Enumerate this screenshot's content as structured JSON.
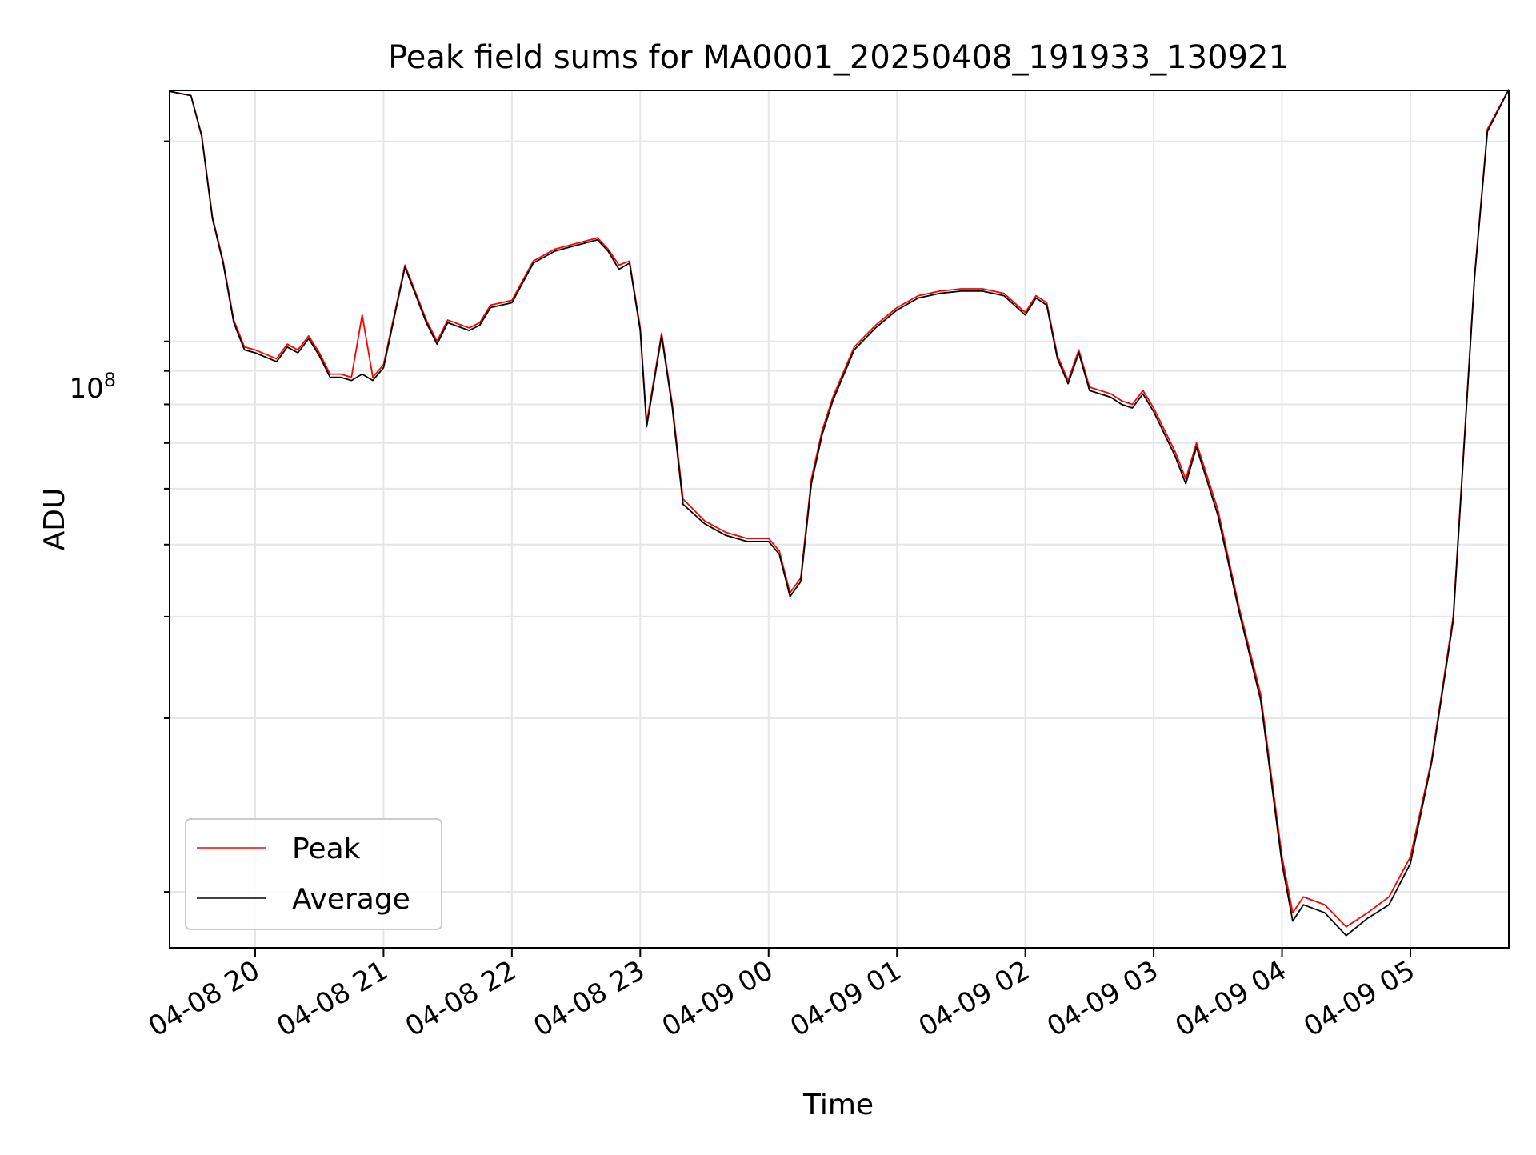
{
  "chart_data": {
    "type": "line",
    "title": "Peak field sums for MA0001_20250408_191933_130921",
    "xlabel": "Time",
    "ylabel": "ADU",
    "y_scale": "log",
    "ylim": [
      8000000,
      245000000
    ],
    "xlim": [
      "2025-04-08 19:20",
      "2025-04-09 05:46"
    ],
    "x_ticks": [
      "04-08 20",
      "04-08 21",
      "04-08 22",
      "04-08 23",
      "04-09 00",
      "04-09 01",
      "04-09 02",
      "04-09 03",
      "04-09 04",
      "04-09 05"
    ],
    "y_tick_label": "10^8",
    "y_tick_label_base": "10",
    "y_tick_label_exp": "8",
    "grid": true,
    "legend_position": "lower-left",
    "colors": {
      "peak": "#ff0000",
      "average": "#000000",
      "grid": "#e6e6e6"
    },
    "series": [
      {
        "name": "Peak",
        "color": "#ff0000",
        "x": [
          "04-08 19:20",
          "04-08 19:30",
          "04-08 19:35",
          "04-08 19:40",
          "04-08 19:45",
          "04-08 19:50",
          "04-08 19:55",
          "04-08 20:00",
          "04-08 20:10",
          "04-08 20:15",
          "04-08 20:20",
          "04-08 20:25",
          "04-08 20:30",
          "04-08 20:35",
          "04-08 20:40",
          "04-08 20:45",
          "04-08 20:50",
          "04-08 20:55",
          "04-08 21:00",
          "04-08 21:05",
          "04-08 21:10",
          "04-08 21:20",
          "04-08 21:25",
          "04-08 21:30",
          "04-08 21:40",
          "04-08 21:45",
          "04-08 21:50",
          "04-08 22:00",
          "04-08 22:10",
          "04-08 22:20",
          "04-08 22:30",
          "04-08 22:40",
          "04-08 22:45",
          "04-08 22:50",
          "04-08 22:55",
          "04-08 23:00",
          "04-08 23:03",
          "04-08 23:10",
          "04-08 23:15",
          "04-08 23:20",
          "04-08 23:30",
          "04-08 23:40",
          "04-08 23:50",
          "04-09 00:00",
          "04-09 00:05",
          "04-09 00:10",
          "04-09 00:15",
          "04-09 00:20",
          "04-09 00:25",
          "04-09 00:30",
          "04-09 00:40",
          "04-09 00:50",
          "04-09 01:00",
          "04-09 01:10",
          "04-09 01:20",
          "04-09 01:30",
          "04-09 01:40",
          "04-09 01:50",
          "04-09 02:00",
          "04-09 02:05",
          "04-09 02:10",
          "04-09 02:15",
          "04-09 02:20",
          "04-09 02:25",
          "04-09 02:30",
          "04-09 02:40",
          "04-09 02:45",
          "04-09 02:50",
          "04-09 02:55",
          "04-09 03:00",
          "04-09 03:10",
          "04-09 03:15",
          "04-09 03:20",
          "04-09 03:30",
          "04-09 03:40",
          "04-09 03:50",
          "04-09 04:00",
          "04-09 04:05",
          "04-09 04:10",
          "04-09 04:20",
          "04-09 04:30",
          "04-09 04:40",
          "04-09 04:50",
          "04-09 05:00",
          "04-09 05:10",
          "04-09 05:20",
          "04-09 05:30",
          "04-09 05:36",
          "04-09 05:46"
        ],
        "y": [
          244000000,
          240000000,
          205000000,
          148000000,
          124000000,
          98000000,
          88000000,
          87000000,
          84000000,
          89000000,
          87000000,
          92000000,
          86000000,
          79000000,
          79000000,
          78000000,
          100000000,
          78000000,
          82000000,
          100000000,
          122000000,
          98000000,
          90000000,
          98000000,
          95000000,
          97000000,
          104000000,
          106000000,
          124000000,
          130000000,
          133000000,
          136000000,
          130000000,
          122000000,
          124000000,
          95000000,
          65000000,
          93000000,
          70000000,
          48000000,
          44000000,
          42000000,
          41000000,
          41000000,
          39000000,
          33000000,
          35000000,
          52000000,
          63000000,
          72000000,
          88000000,
          96000000,
          103000000,
          108000000,
          110000000,
          111000000,
          111000000,
          109000000,
          101000000,
          108000000,
          105000000,
          85000000,
          77000000,
          87000000,
          75000000,
          73000000,
          71000000,
          70000000,
          74000000,
          69000000,
          58000000,
          52000000,
          60000000,
          46000000,
          31000000,
          22000000,
          11500000,
          9200000,
          9800000,
          9500000,
          8700000,
          9200000,
          9800000,
          11500000,
          17000000,
          30000000,
          117000000,
          210000000,
          246000000
        ]
      },
      {
        "name": "Average",
        "color": "#000000",
        "x": [
          "04-08 19:20",
          "04-08 19:30",
          "04-08 19:35",
          "04-08 19:40",
          "04-08 19:45",
          "04-08 19:50",
          "04-08 19:55",
          "04-08 20:00",
          "04-08 20:10",
          "04-08 20:15",
          "04-08 20:20",
          "04-08 20:25",
          "04-08 20:30",
          "04-08 20:35",
          "04-08 20:40",
          "04-08 20:45",
          "04-08 20:50",
          "04-08 20:55",
          "04-08 21:00",
          "04-08 21:05",
          "04-08 21:10",
          "04-08 21:20",
          "04-08 21:25",
          "04-08 21:30",
          "04-08 21:40",
          "04-08 21:45",
          "04-08 21:50",
          "04-08 22:00",
          "04-08 22:10",
          "04-08 22:20",
          "04-08 22:30",
          "04-08 22:40",
          "04-08 22:45",
          "04-08 22:50",
          "04-08 22:55",
          "04-08 23:00",
          "04-08 23:03",
          "04-08 23:10",
          "04-08 23:15",
          "04-08 23:20",
          "04-08 23:30",
          "04-08 23:40",
          "04-08 23:50",
          "04-09 00:00",
          "04-09 00:05",
          "04-09 00:10",
          "04-09 00:15",
          "04-09 00:20",
          "04-09 00:25",
          "04-09 00:30",
          "04-09 00:40",
          "04-09 00:50",
          "04-09 01:00",
          "04-09 01:10",
          "04-09 01:20",
          "04-09 01:30",
          "04-09 01:40",
          "04-09 01:50",
          "04-09 02:00",
          "04-09 02:05",
          "04-09 02:10",
          "04-09 02:15",
          "04-09 02:20",
          "04-09 02:25",
          "04-09 02:30",
          "04-09 02:40",
          "04-09 02:45",
          "04-09 02:50",
          "04-09 02:55",
          "04-09 03:00",
          "04-09 03:10",
          "04-09 03:15",
          "04-09 03:20",
          "04-09 03:30",
          "04-09 03:40",
          "04-09 03:50",
          "04-09 04:00",
          "04-09 04:05",
          "04-09 04:10",
          "04-09 04:20",
          "04-09 04:30",
          "04-09 04:40",
          "04-09 04:50",
          "04-09 05:00",
          "04-09 05:10",
          "04-09 05:20",
          "04-09 05:30",
          "04-09 05:36",
          "04-09 05:46"
        ],
        "y": [
          244000000,
          240000000,
          204000000,
          147000000,
          123000000,
          97000000,
          87000000,
          86000000,
          83000000,
          88000000,
          86000000,
          91000000,
          85000000,
          78000000,
          78000000,
          77000000,
          79000000,
          77000000,
          81000000,
          99000000,
          121000000,
          97000000,
          89000000,
          97000000,
          94000000,
          96000000,
          103000000,
          105000000,
          123000000,
          129000000,
          132000000,
          135000000,
          129000000,
          120000000,
          123000000,
          94000000,
          64000000,
          92000000,
          69000000,
          47000000,
          43500000,
          41500000,
          40500000,
          40500000,
          38500000,
          32500000,
          34500000,
          51000000,
          62000000,
          71000000,
          87000000,
          95000000,
          102000000,
          107000000,
          109000000,
          110000000,
          110000000,
          108000000,
          100000000,
          107000000,
          104000000,
          84000000,
          76000000,
          86000000,
          74000000,
          72000000,
          70000000,
          69000000,
          73000000,
          68000000,
          57000000,
          51000000,
          59000000,
          45000000,
          30500000,
          21500000,
          11200000,
          8900000,
          9500000,
          9200000,
          8400000,
          9000000,
          9500000,
          11200000,
          16800000,
          29500000,
          116000000,
          208000000,
          246000000
        ]
      }
    ]
  }
}
